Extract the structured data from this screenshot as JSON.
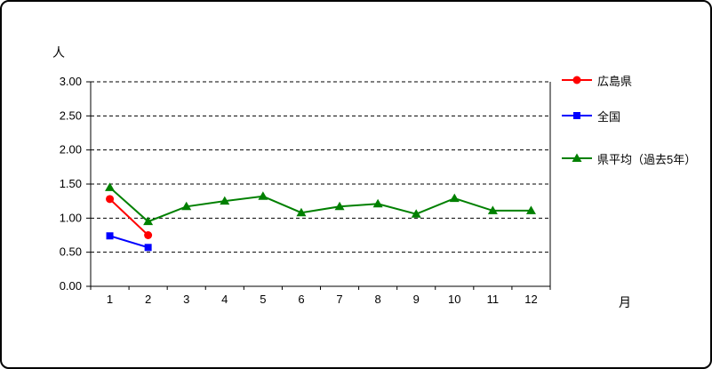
{
  "chart_data": {
    "type": "line",
    "title": "",
    "ylabel": "人",
    "xlabel": "月",
    "ylim": [
      0,
      3
    ],
    "y_ticks": [
      0,
      0.5,
      1,
      1.5,
      2,
      2.5,
      3
    ],
    "y_tick_labels": [
      "0.00",
      "0.50",
      "1.00",
      "1.50",
      "2.00",
      "2.50",
      "3.00"
    ],
    "categories": [
      "1",
      "2",
      "3",
      "4",
      "5",
      "6",
      "7",
      "8",
      "9",
      "10",
      "11",
      "12"
    ],
    "grid": "dashed-horizontal",
    "legend_position": "right",
    "series": [
      {
        "name": "広島県",
        "color": "#ff0000",
        "marker": "circle",
        "values": [
          1.28,
          0.75,
          null,
          null,
          null,
          null,
          null,
          null,
          null,
          null,
          null,
          null
        ]
      },
      {
        "name": "全国",
        "color": "#0000ff",
        "marker": "square",
        "values": [
          0.74,
          0.57,
          null,
          null,
          null,
          null,
          null,
          null,
          null,
          null,
          null,
          null
        ]
      },
      {
        "name": "県平均（過去5年）",
        "color": "#008000",
        "marker": "triangle",
        "values": [
          1.45,
          0.95,
          1.17,
          1.25,
          1.32,
          1.08,
          1.17,
          1.21,
          1.06,
          1.29,
          1.11,
          1.11
        ]
      }
    ]
  }
}
